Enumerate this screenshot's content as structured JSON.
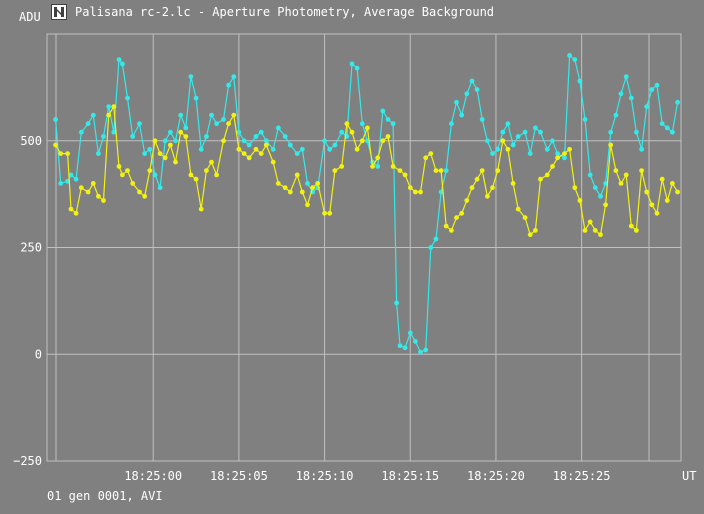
{
  "window": {
    "title": "Palisana rc-2.lc - Aperture Photometry, Average Background",
    "icon": "app-logo-icon"
  },
  "footer": {
    "info": "01 gen 0001, AVI"
  },
  "colors": {
    "background": "#808080",
    "grid": "#c0c0c0",
    "series1": "#33eaea",
    "series2": "#f2f20f"
  },
  "chart_data": {
    "type": "line",
    "title": "Palisana rc-2.lc - Aperture Photometry, Average Background",
    "ylabel": "ADU",
    "xlabel": "UT",
    "ylim": [
      -250,
      750
    ],
    "xlim": [
      -6.2,
      30.8
    ],
    "x_unit": "seconds after 18:25:00",
    "yticks": [
      "500",
      "250",
      "0",
      "−250"
    ],
    "ytick_values": [
      500,
      250,
      0,
      -250
    ],
    "xticks": [
      "18:25:00",
      "18:25:05",
      "18:25:10",
      "18:25:15",
      "18:25:20",
      "18:25:25"
    ],
    "xtick_values": [
      0,
      5,
      10,
      15,
      20,
      25
    ],
    "grid": true,
    "series": [
      {
        "color": "#33eaea",
        "points": [
          [
            -5.7,
            550
          ],
          [
            -5.4,
            400
          ],
          [
            -5.0,
            405
          ],
          [
            -4.8,
            420
          ],
          [
            -4.5,
            410
          ],
          [
            -4.2,
            520
          ],
          [
            -3.8,
            540
          ],
          [
            -3.5,
            560
          ],
          [
            -3.2,
            470
          ],
          [
            -2.9,
            510
          ],
          [
            -2.6,
            580
          ],
          [
            -2.3,
            520
          ],
          [
            -2.0,
            690
          ],
          [
            -1.8,
            680
          ],
          [
            -1.5,
            600
          ],
          [
            -1.2,
            510
          ],
          [
            -0.8,
            540
          ],
          [
            -0.5,
            470
          ],
          [
            -0.2,
            480
          ],
          [
            0.1,
            420
          ],
          [
            0.4,
            390
          ],
          [
            0.7,
            500
          ],
          [
            1.0,
            520
          ],
          [
            1.3,
            500
          ],
          [
            1.6,
            560
          ],
          [
            1.9,
            530
          ],
          [
            2.2,
            650
          ],
          [
            2.5,
            600
          ],
          [
            2.8,
            480
          ],
          [
            3.1,
            510
          ],
          [
            3.4,
            560
          ],
          [
            3.7,
            540
          ],
          [
            4.1,
            550
          ],
          [
            4.4,
            630
          ],
          [
            4.7,
            650
          ],
          [
            5.0,
            520
          ],
          [
            5.3,
            500
          ],
          [
            5.6,
            490
          ],
          [
            6.0,
            510
          ],
          [
            6.3,
            520
          ],
          [
            6.6,
            500
          ],
          [
            7.0,
            480
          ],
          [
            7.3,
            530
          ],
          [
            7.7,
            510
          ],
          [
            8.0,
            490
          ],
          [
            8.4,
            470
          ],
          [
            8.7,
            480
          ],
          [
            9.0,
            400
          ],
          [
            9.3,
            380
          ],
          [
            9.6,
            390
          ],
          [
            10.0,
            500
          ],
          [
            10.3,
            480
          ],
          [
            10.6,
            490
          ],
          [
            11.0,
            520
          ],
          [
            11.3,
            510
          ],
          [
            11.6,
            680
          ],
          [
            11.9,
            670
          ],
          [
            12.2,
            540
          ],
          [
            12.5,
            500
          ],
          [
            12.8,
            450
          ],
          [
            13.1,
            440
          ],
          [
            13.4,
            570
          ],
          [
            13.7,
            550
          ],
          [
            14.0,
            540
          ],
          [
            14.2,
            120
          ],
          [
            14.4,
            20
          ],
          [
            14.7,
            15
          ],
          [
            15.0,
            50
          ],
          [
            15.3,
            30
          ],
          [
            15.6,
            5
          ],
          [
            15.9,
            10
          ],
          [
            16.2,
            250
          ],
          [
            16.5,
            270
          ],
          [
            16.8,
            380
          ],
          [
            17.1,
            430
          ],
          [
            17.4,
            540
          ],
          [
            17.7,
            590
          ],
          [
            18.0,
            560
          ],
          [
            18.3,
            610
          ],
          [
            18.6,
            640
          ],
          [
            18.9,
            620
          ],
          [
            19.2,
            550
          ],
          [
            19.5,
            500
          ],
          [
            19.8,
            470
          ],
          [
            20.1,
            480
          ],
          [
            20.4,
            520
          ],
          [
            20.7,
            540
          ],
          [
            21.0,
            490
          ],
          [
            21.3,
            510
          ],
          [
            21.7,
            520
          ],
          [
            22.0,
            470
          ],
          [
            22.3,
            530
          ],
          [
            22.6,
            520
          ],
          [
            23.0,
            480
          ],
          [
            23.3,
            500
          ],
          [
            23.6,
            470
          ],
          [
            24.0,
            460
          ],
          [
            24.3,
            700
          ],
          [
            24.6,
            690
          ],
          [
            24.9,
            640
          ],
          [
            25.2,
            550
          ],
          [
            25.5,
            420
          ],
          [
            25.8,
            390
          ],
          [
            26.1,
            370
          ],
          [
            26.4,
            400
          ],
          [
            26.7,
            520
          ],
          [
            27.0,
            560
          ],
          [
            27.3,
            610
          ],
          [
            27.6,
            650
          ],
          [
            27.9,
            600
          ],
          [
            28.2,
            520
          ],
          [
            28.5,
            480
          ],
          [
            28.8,
            580
          ],
          [
            29.1,
            620
          ],
          [
            29.4,
            630
          ],
          [
            29.7,
            540
          ],
          [
            30.0,
            530
          ],
          [
            30.3,
            520
          ],
          [
            30.6,
            590
          ]
        ]
      },
      {
        "color": "#f2f20f",
        "points": [
          [
            -5.7,
            490
          ],
          [
            -5.4,
            470
          ],
          [
            -5.0,
            470
          ],
          [
            -4.8,
            340
          ],
          [
            -4.5,
            330
          ],
          [
            -4.2,
            390
          ],
          [
            -3.8,
            380
          ],
          [
            -3.5,
            400
          ],
          [
            -3.2,
            370
          ],
          [
            -2.9,
            360
          ],
          [
            -2.6,
            560
          ],
          [
            -2.3,
            580
          ],
          [
            -2.0,
            440
          ],
          [
            -1.8,
            420
          ],
          [
            -1.5,
            430
          ],
          [
            -1.2,
            400
          ],
          [
            -0.8,
            380
          ],
          [
            -0.5,
            370
          ],
          [
            -0.2,
            430
          ],
          [
            0.1,
            500
          ],
          [
            0.4,
            470
          ],
          [
            0.7,
            460
          ],
          [
            1.0,
            490
          ],
          [
            1.3,
            450
          ],
          [
            1.6,
            520
          ],
          [
            1.9,
            510
          ],
          [
            2.2,
            420
          ],
          [
            2.5,
            410
          ],
          [
            2.8,
            340
          ],
          [
            3.1,
            430
          ],
          [
            3.4,
            450
          ],
          [
            3.7,
            420
          ],
          [
            4.1,
            500
          ],
          [
            4.4,
            540
          ],
          [
            4.7,
            560
          ],
          [
            5.0,
            480
          ],
          [
            5.3,
            470
          ],
          [
            5.6,
            460
          ],
          [
            6.0,
            480
          ],
          [
            6.3,
            470
          ],
          [
            6.6,
            490
          ],
          [
            7.0,
            450
          ],
          [
            7.3,
            400
          ],
          [
            7.7,
            390
          ],
          [
            8.0,
            380
          ],
          [
            8.4,
            420
          ],
          [
            8.7,
            380
          ],
          [
            9.0,
            350
          ],
          [
            9.3,
            390
          ],
          [
            9.6,
            400
          ],
          [
            10.0,
            330
          ],
          [
            10.3,
            330
          ],
          [
            10.6,
            430
          ],
          [
            11.0,
            440
          ],
          [
            11.3,
            540
          ],
          [
            11.6,
            520
          ],
          [
            11.9,
            480
          ],
          [
            12.2,
            500
          ],
          [
            12.5,
            530
          ],
          [
            12.8,
            440
          ],
          [
            13.1,
            460
          ],
          [
            13.4,
            500
          ],
          [
            13.7,
            510
          ],
          [
            14.0,
            440
          ],
          [
            14.4,
            430
          ],
          [
            14.7,
            420
          ],
          [
            15.0,
            390
          ],
          [
            15.3,
            380
          ],
          [
            15.6,
            380
          ],
          [
            15.9,
            460
          ],
          [
            16.2,
            470
          ],
          [
            16.5,
            430
          ],
          [
            16.8,
            430
          ],
          [
            17.1,
            300
          ],
          [
            17.4,
            290
          ],
          [
            17.7,
            320
          ],
          [
            18.0,
            330
          ],
          [
            18.3,
            360
          ],
          [
            18.6,
            390
          ],
          [
            18.9,
            410
          ],
          [
            19.2,
            430
          ],
          [
            19.5,
            370
          ],
          [
            19.8,
            390
          ],
          [
            20.1,
            430
          ],
          [
            20.4,
            500
          ],
          [
            20.7,
            480
          ],
          [
            21.0,
            400
          ],
          [
            21.3,
            340
          ],
          [
            21.7,
            320
          ],
          [
            22.0,
            280
          ],
          [
            22.3,
            290
          ],
          [
            22.6,
            410
          ],
          [
            23.0,
            420
          ],
          [
            23.3,
            440
          ],
          [
            23.6,
            460
          ],
          [
            24.0,
            470
          ],
          [
            24.3,
            480
          ],
          [
            24.6,
            390
          ],
          [
            24.9,
            360
          ],
          [
            25.2,
            290
          ],
          [
            25.5,
            310
          ],
          [
            25.8,
            290
          ],
          [
            26.1,
            280
          ],
          [
            26.4,
            350
          ],
          [
            26.7,
            490
          ],
          [
            27.0,
            430
          ],
          [
            27.3,
            400
          ],
          [
            27.6,
            420
          ],
          [
            27.9,
            300
          ],
          [
            28.2,
            290
          ],
          [
            28.5,
            430
          ],
          [
            28.8,
            380
          ],
          [
            29.1,
            350
          ],
          [
            29.4,
            330
          ],
          [
            29.7,
            410
          ],
          [
            30.0,
            360
          ],
          [
            30.3,
            400
          ],
          [
            30.6,
            380
          ]
        ]
      }
    ]
  }
}
